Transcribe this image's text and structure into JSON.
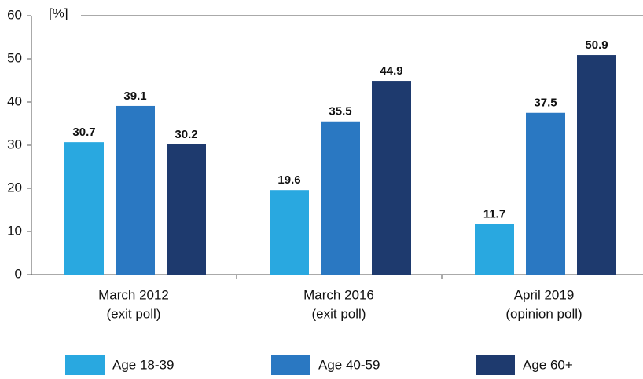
{
  "chart_data": {
    "type": "bar",
    "y_label": "[%]",
    "categories": [
      [
        "March 2012",
        "(exit poll)"
      ],
      [
        "March 2016",
        "(exit poll)"
      ],
      [
        "April 2019",
        "(opinion poll)"
      ]
    ],
    "series": [
      {
        "name": "Age 18-39",
        "color": "#29a8e0",
        "values": [
          30.7,
          19.6,
          11.7
        ]
      },
      {
        "name": "Age 40-59",
        "color": "#2a78c2",
        "values": [
          39.1,
          35.5,
          37.5
        ]
      },
      {
        "name": "Age 60+",
        "color": "#1e3a6e",
        "values": [
          30.2,
          44.9,
          50.9
        ]
      }
    ],
    "ylim": [
      0,
      60
    ],
    "yticks": [
      0,
      10,
      20,
      30,
      40,
      50,
      60
    ],
    "legend": "bottom"
  }
}
